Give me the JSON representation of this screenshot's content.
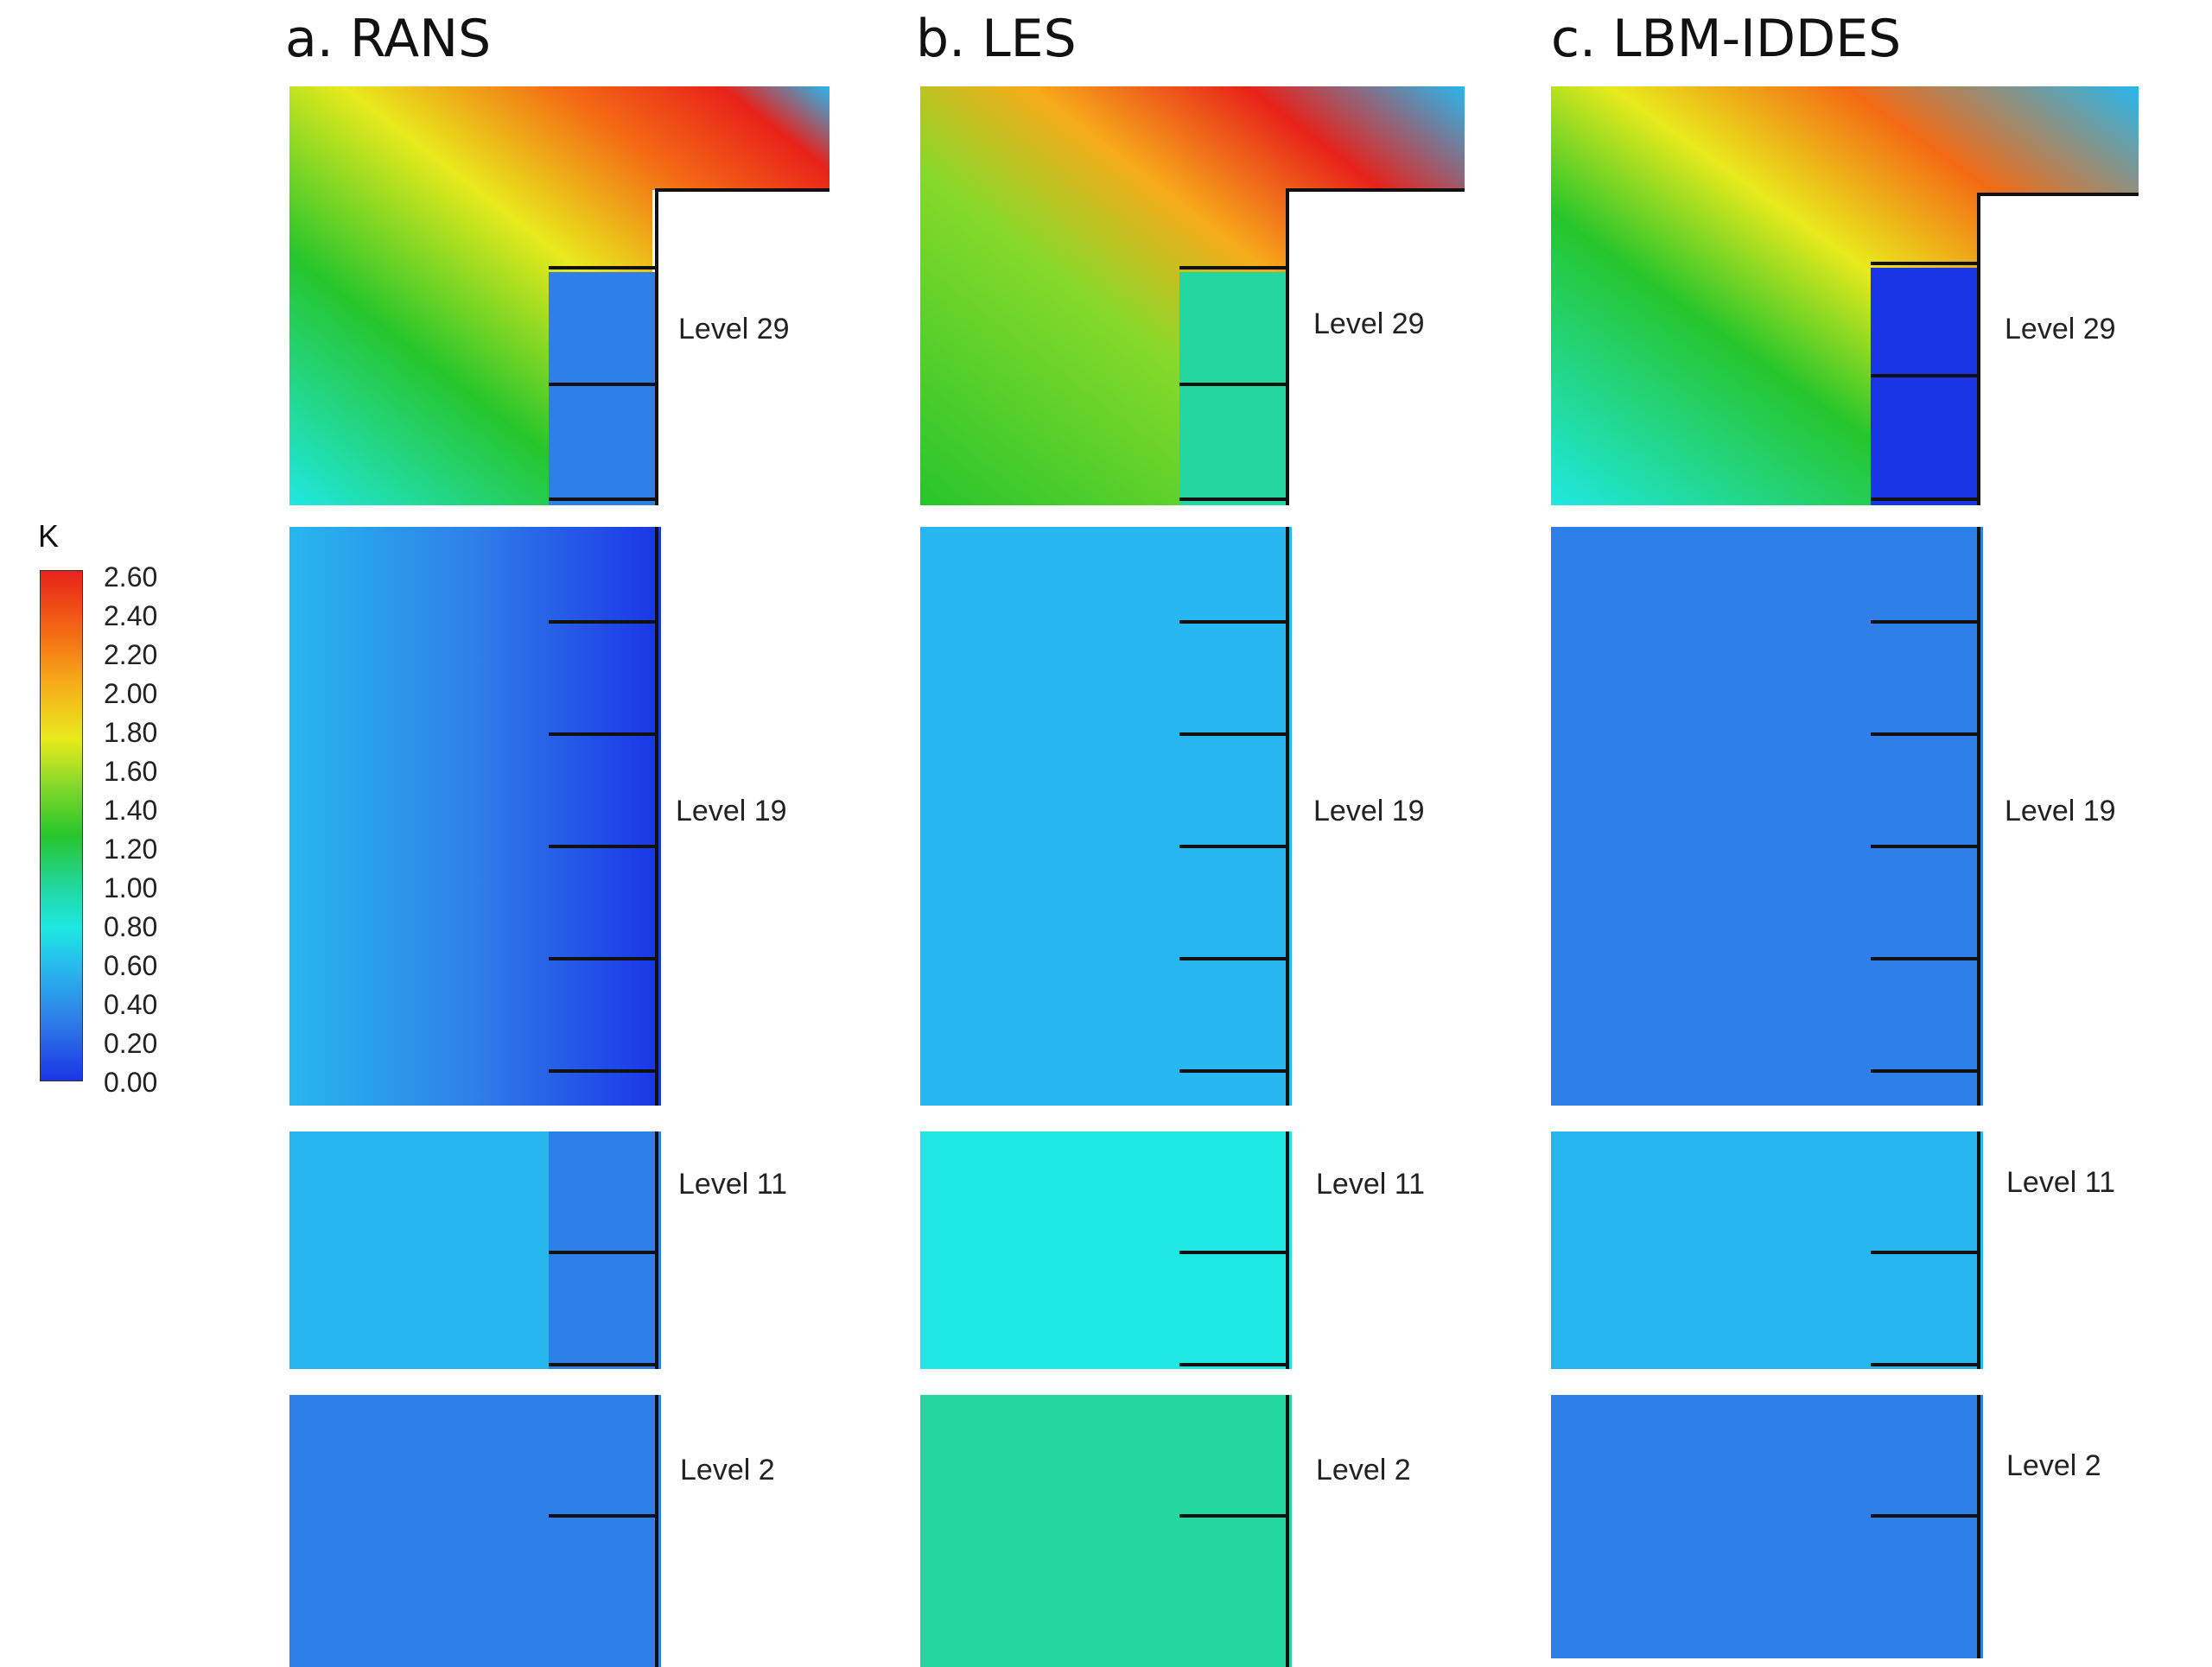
{
  "columns": [
    {
      "title": "a. RANS"
    },
    {
      "title": "b. LES"
    },
    {
      "title": "c. LBM-IDDES"
    }
  ],
  "levels": [
    "Level 29",
    "Level 19",
    "Level 11",
    "Level 2"
  ],
  "legend": {
    "title": "K",
    "ticks": [
      "2.60",
      "2.40",
      "2.20",
      "2.00",
      "1.80",
      "1.60",
      "1.40",
      "1.20",
      "1.00",
      "0.80",
      "0.60",
      "0.40",
      "0.20",
      "0.00"
    ]
  },
  "colors": {
    "high": "#e8221a",
    "mid": "#26c52c",
    "low_cyan": "#1fe8e2",
    "low_blue": "#1a35e6"
  }
}
